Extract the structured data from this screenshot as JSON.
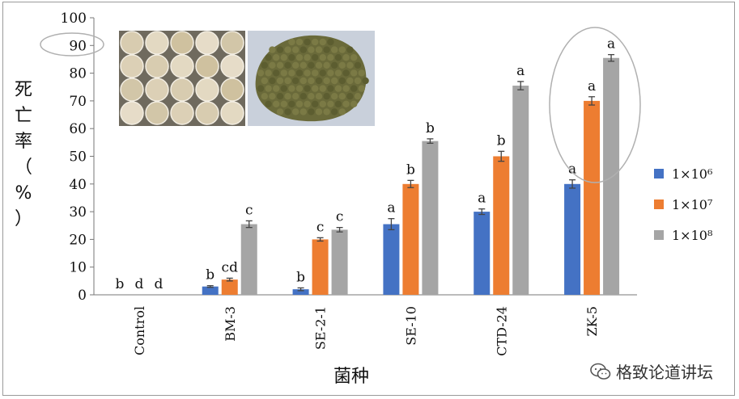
{
  "chart_data": {
    "type": "bar",
    "title": "",
    "xlabel": "菌种",
    "ylabel": "死亡率（%）",
    "ylabel_chars": [
      "死",
      "亡",
      "率",
      "（",
      "%",
      "）"
    ],
    "ylim": [
      0,
      100
    ],
    "yticks": [
      0,
      10,
      20,
      30,
      40,
      50,
      60,
      70,
      80,
      90,
      100
    ],
    "categories": [
      "Control",
      "BM-3",
      "SE-2-1",
      "SE-10",
      "CTD-24",
      "ZK-5"
    ],
    "series": [
      {
        "name": "1×10⁶",
        "color": "#4472c4",
        "values": [
          0,
          3,
          2,
          25.5,
          30,
          40
        ],
        "errors": [
          0,
          0.3,
          0.5,
          2.0,
          1.0,
          1.5
        ],
        "labels": [
          "b",
          "b",
          "b",
          "a",
          "a",
          "a"
        ]
      },
      {
        "name": "1×10⁷",
        "color": "#ed7d31",
        "values": [
          0,
          5.5,
          20,
          40,
          50,
          70
        ],
        "errors": [
          0,
          0.5,
          0.6,
          1.3,
          1.8,
          1.5
        ],
        "labels": [
          "d",
          "cd",
          "c",
          "b",
          "b",
          "a"
        ]
      },
      {
        "name": "1×10⁸",
        "color": "#a5a5a5",
        "values": [
          0,
          25.5,
          23.5,
          55.5,
          75.5,
          85.5
        ],
        "errors": [
          0,
          1.2,
          0.8,
          0.8,
          1.5,
          1.2
        ],
        "labels": [
          "d",
          "c",
          "c",
          "b",
          "a",
          "a"
        ]
      }
    ],
    "grid": false,
    "legend_position": "right"
  },
  "watermark": {
    "text": "格致论道讲坛",
    "icon": "wechat-icon"
  }
}
